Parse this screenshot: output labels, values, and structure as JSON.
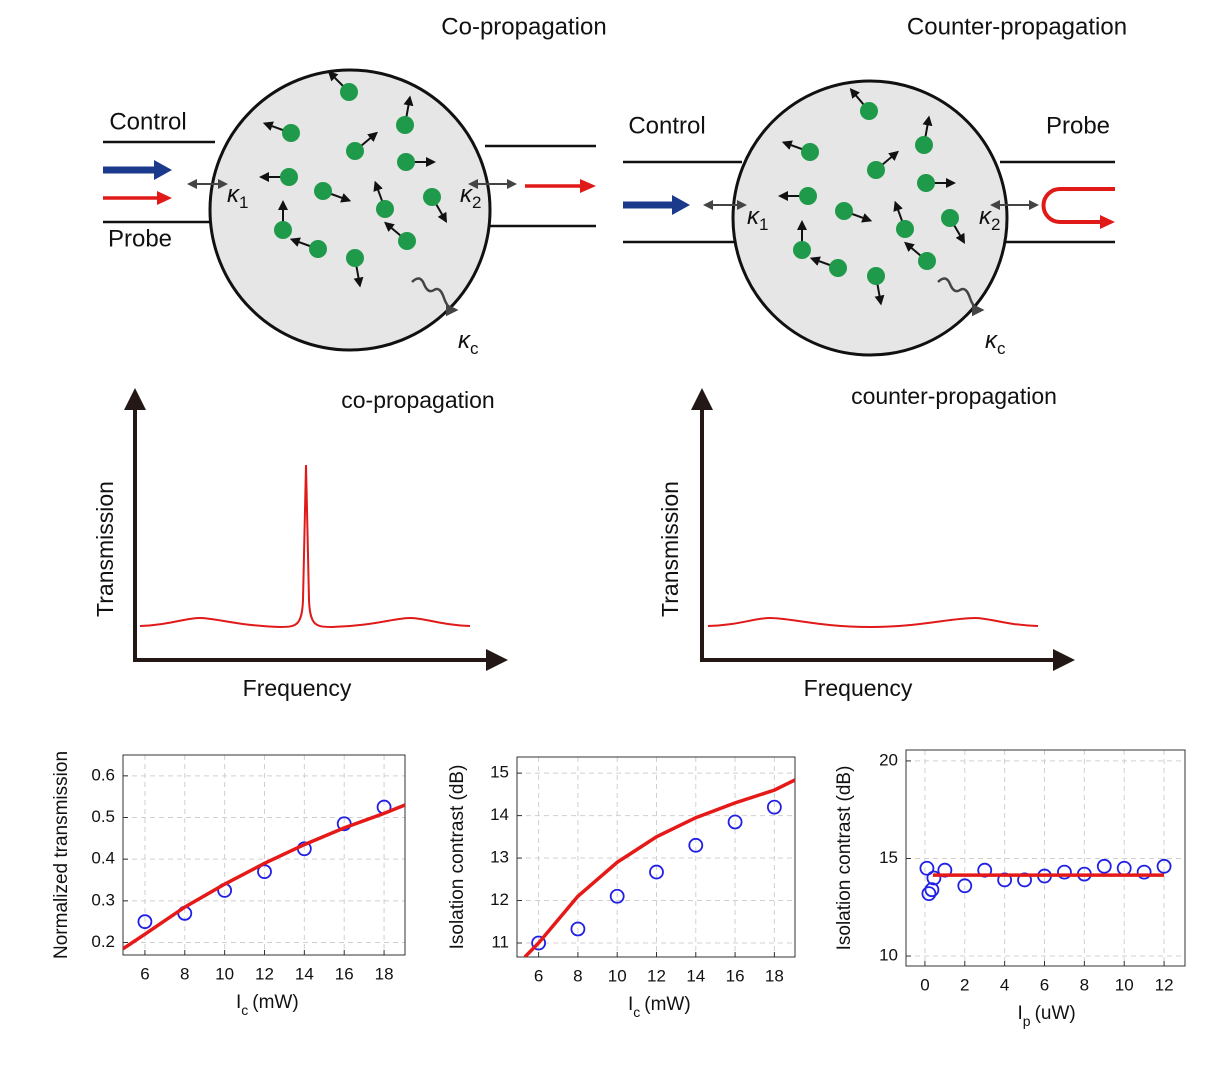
{
  "diagrams": [
    {
      "title": "Co-propagation",
      "control": "Control",
      "probe": "Probe",
      "kappa": "κ",
      "kappa_subs": [
        "1",
        "2",
        "c"
      ]
    },
    {
      "title": "Counter-propagation",
      "control": "Control",
      "probe": "Probe",
      "kappa": "κ",
      "kappa_subs": [
        "1",
        "2",
        "c"
      ]
    }
  ],
  "spectra": [
    {
      "title": "co-propagation",
      "ylabel": "Transmission",
      "xlabel": "Frequency"
    },
    {
      "title": "counter-propagation",
      "ylabel": "Transmission",
      "xlabel": "Frequency"
    }
  ],
  "chart_data": [
    {
      "type": "scatter",
      "ylabel": "Normalized transmission",
      "xlabel": {
        "symbol": "I",
        "sub": "c",
        "unit": "(mW)"
      },
      "xlim": [
        4.9,
        19.05
      ],
      "ylim": [
        0.17,
        0.65
      ],
      "xticks": [
        6,
        8,
        10,
        12,
        14,
        16,
        18
      ],
      "yticks": [
        0.2,
        0.3,
        0.4,
        0.5,
        0.6
      ],
      "grid": true,
      "series": [
        {
          "color": "#1f1fe6",
          "marker": "circle",
          "x": [
            6,
            8,
            10,
            12,
            14,
            16,
            18
          ],
          "values": [
            0.25,
            0.27,
            0.325,
            0.37,
            0.425,
            0.485,
            0.525
          ]
        },
        {
          "color": "#e61919",
          "marker": "line",
          "x": [
            4.9,
            6,
            8,
            10,
            12,
            14,
            16,
            18,
            19.05
          ],
          "values": [
            0.185,
            0.22,
            0.285,
            0.34,
            0.39,
            0.435,
            0.475,
            0.51,
            0.53
          ]
        }
      ]
    },
    {
      "type": "scatter",
      "ylabel": "Isolation contrast (dB)",
      "xlabel": {
        "symbol": "I",
        "sub": "c",
        "unit": "(mW)"
      },
      "xlim": [
        4.9,
        19.05
      ],
      "ylim": [
        10.67,
        15.38
      ],
      "xticks": [
        6,
        8,
        10,
        12,
        14,
        16,
        18
      ],
      "yticks": [
        11,
        12,
        13,
        14,
        15
      ],
      "grid": true,
      "series": [
        {
          "color": "#1f1fe6",
          "marker": "circle",
          "x": [
            6,
            8,
            10,
            12,
            14,
            16,
            18
          ],
          "values": [
            11.0,
            11.33,
            12.1,
            12.67,
            13.3,
            13.85,
            14.2
          ]
        },
        {
          "color": "#e61919",
          "marker": "line",
          "x": [
            5.3,
            6,
            8,
            10,
            12,
            14,
            16,
            18,
            19.05
          ],
          "values": [
            10.67,
            11.0,
            12.1,
            12.9,
            13.5,
            13.95,
            14.3,
            14.6,
            14.84
          ]
        }
      ]
    },
    {
      "type": "scatter",
      "ylabel": "Isolation contrast (dB)",
      "xlabel": {
        "symbol": "I",
        "sub": "p",
        "unit": "(uW)"
      },
      "xlim": [
        -0.95,
        13.05
      ],
      "ylim": [
        9.49,
        20.56
      ],
      "xticks": [
        0,
        2,
        4,
        6,
        8,
        10,
        12
      ],
      "yticks": [
        10,
        15,
        20
      ],
      "grid": true,
      "series": [
        {
          "color": "#1f1fe6",
          "marker": "circle",
          "x": [
            0.1,
            0.2,
            0.35,
            0.45,
            1,
            2,
            3,
            4,
            5,
            6,
            7,
            8,
            9,
            10,
            11,
            12
          ],
          "values": [
            14.5,
            13.2,
            13.4,
            14.0,
            14.4,
            13.6,
            14.4,
            13.9,
            13.9,
            14.1,
            14.3,
            14.2,
            14.6,
            14.5,
            14.3,
            14.6
          ]
        },
        {
          "color": "#e61919",
          "marker": "line",
          "x": [
            0.4,
            12
          ],
          "values": [
            14.15,
            14.15
          ]
        }
      ]
    }
  ]
}
